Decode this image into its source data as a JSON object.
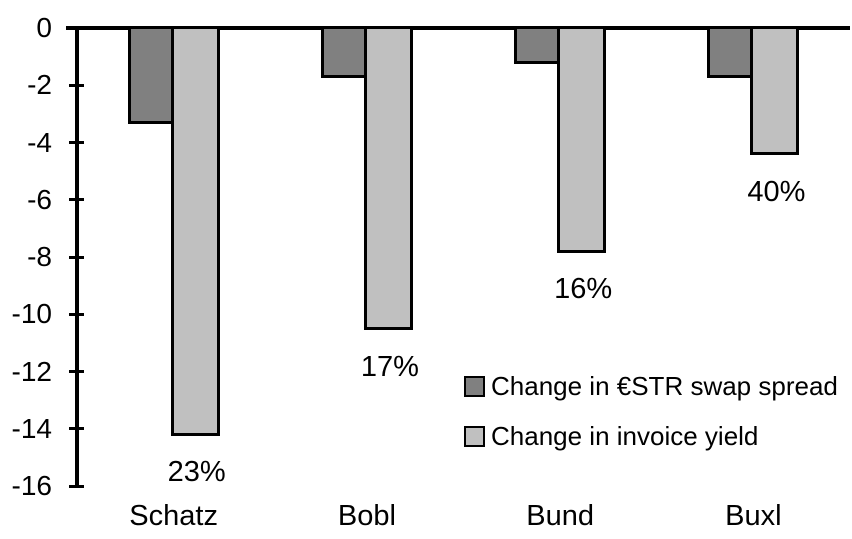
{
  "chart_data": {
    "type": "bar",
    "title": "",
    "xlabel": "",
    "ylabel": "",
    "categories": [
      "Schatz",
      "Bobl",
      "Bund",
      "Buxl"
    ],
    "series": [
      {
        "name": "Change in €STR swap spread",
        "color": "#808080",
        "values": [
          -3.3,
          -1.7,
          -1.2,
          -1.7
        ]
      },
      {
        "name": "Change in invoice yield",
        "color": "#c0c0c0",
        "values": [
          -14.2,
          -10.5,
          -7.8,
          -4.4
        ]
      }
    ],
    "bar_labels": {
      "series_index": 1,
      "values": [
        "23%",
        "17%",
        "16%",
        "40%"
      ]
    },
    "ylim": [
      -16,
      0
    ],
    "yticks": [
      0,
      -2,
      -4,
      -6,
      -8,
      -10,
      -12,
      -14,
      -16
    ],
    "ytick_labels": [
      "0",
      "-2",
      "-4",
      "-6",
      "-8",
      "-10",
      "-12",
      "-14",
      "-16"
    ],
    "grid": false,
    "legend_position": "inside-right",
    "colors": {
      "axis": "#000000",
      "text": "#000000",
      "background": "#ffffff",
      "bar_border": "#000000"
    }
  }
}
